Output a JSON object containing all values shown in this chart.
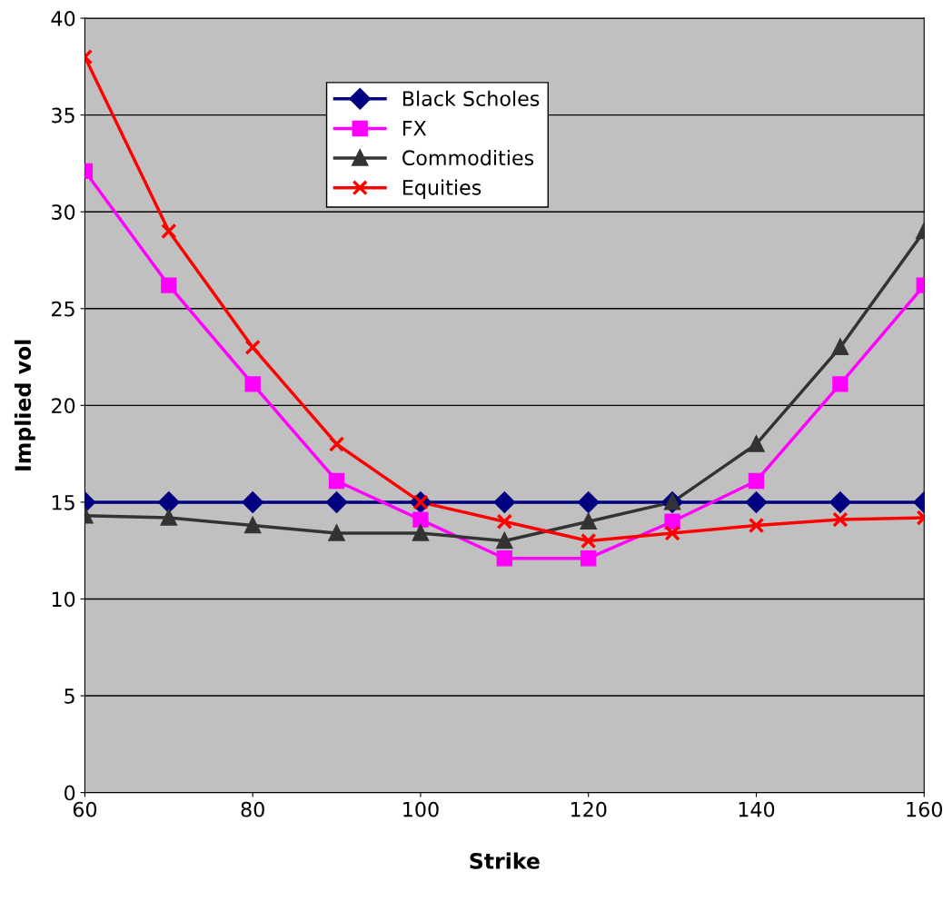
{
  "chart_data": {
    "type": "line",
    "xlabel": "Strike",
    "ylabel": "Implied vol",
    "x": [
      60,
      70,
      80,
      90,
      100,
      110,
      120,
      130,
      140,
      150,
      160
    ],
    "series": [
      {
        "name": "Black Scholes",
        "color": "#000080",
        "marker": "diamond",
        "values": [
          15,
          15,
          15,
          15,
          15,
          15,
          15,
          15,
          15,
          15,
          15
        ]
      },
      {
        "name": "FX",
        "color": "#ff00ff",
        "marker": "square",
        "values": [
          32.1,
          26.2,
          21.1,
          16.1,
          14.1,
          12.1,
          12.1,
          14.0,
          16.1,
          21.1,
          26.2
        ]
      },
      {
        "name": "Commodities",
        "color": "#333333",
        "marker": "triangle",
        "values": [
          14.3,
          14.2,
          13.8,
          13.4,
          13.4,
          13.0,
          14.0,
          15.0,
          18.0,
          23.0,
          29.0
        ]
      },
      {
        "name": "Equities",
        "color": "#ff0000",
        "marker": "cross",
        "values": [
          38,
          29,
          23,
          18,
          15,
          14,
          13,
          13.4,
          13.8,
          14.1,
          14.2
        ]
      }
    ],
    "xlim": [
      60,
      160
    ],
    "xticks": [
      60,
      80,
      100,
      120,
      140,
      160
    ],
    "ylim": [
      0,
      40
    ],
    "yticks": [
      0,
      5,
      10,
      15,
      20,
      25,
      30,
      35,
      40
    ],
    "grid": "y",
    "legend": "top"
  }
}
